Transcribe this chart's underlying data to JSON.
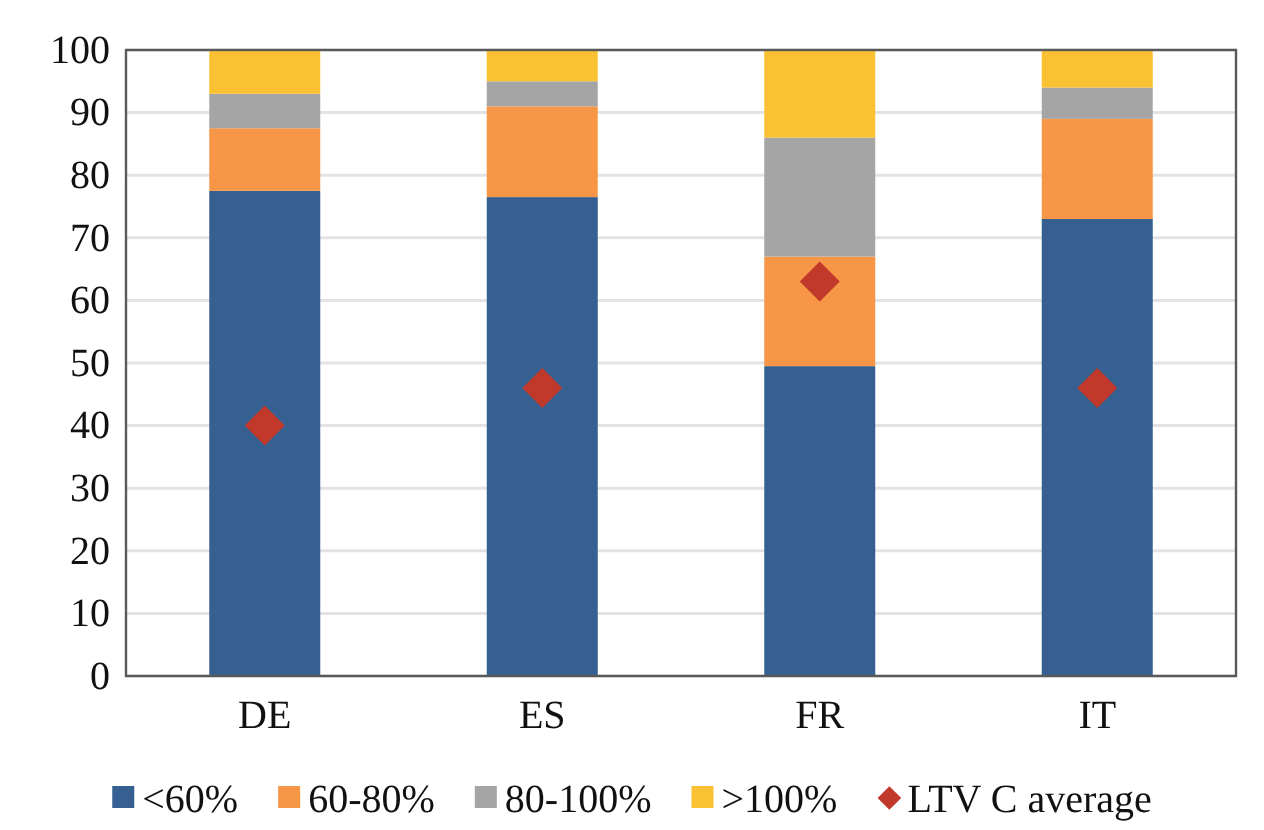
{
  "chart_data": {
    "type": "bar",
    "stacked": true,
    "categories": [
      "DE",
      "ES",
      "FR",
      "IT"
    ],
    "series": [
      {
        "name": "<60%",
        "color": "#376092",
        "values": [
          77.5,
          76.5,
          49.5,
          73
        ]
      },
      {
        "name": "60-80%",
        "color": "#f79646",
        "values": [
          10,
          14.5,
          17.5,
          16
        ]
      },
      {
        "name": "80-100%",
        "color": "#a5a5a5",
        "values": [
          5.5,
          4,
          19,
          5
        ]
      },
      {
        "name": ">100%",
        "color": "#fac133",
        "values": [
          7,
          5,
          14,
          6
        ]
      },
      {
        "name": "LTV C average",
        "type": "scatter",
        "marker": "diamond",
        "color": "#c0392b",
        "x": [
          "DE",
          "ES",
          "FR",
          "IT"
        ],
        "values": [
          40,
          46,
          63,
          46
        ]
      }
    ],
    "ylim": [
      0,
      100
    ],
    "yticks": [
      0,
      10,
      20,
      30,
      40,
      50,
      60,
      70,
      80,
      90,
      100
    ],
    "grid": "y",
    "legend": "bottom"
  }
}
